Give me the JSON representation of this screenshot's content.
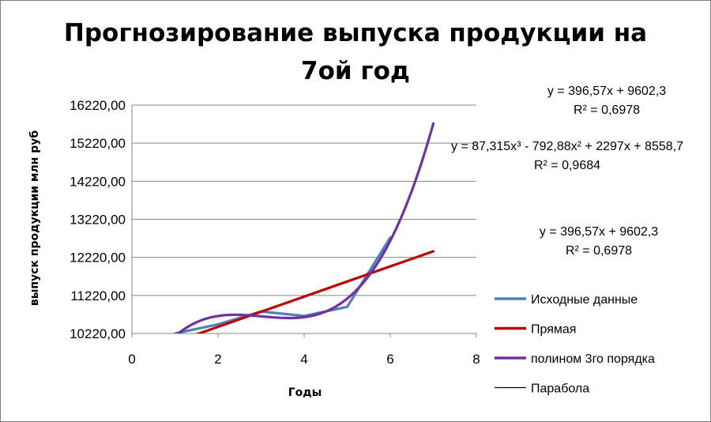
{
  "chart_data": {
    "type": "line",
    "title_line1": "Прогнозирование выпуска продукции на",
    "title_line2": "7ой год",
    "xlabel": "Годы",
    "ylabel": "выпуск продукции млн руб",
    "xlim": [
      0,
      8
    ],
    "ylim": [
      10220,
      16220
    ],
    "x_ticks": [
      "0",
      "2",
      "4",
      "6",
      "8"
    ],
    "y_ticks": [
      "10220,00",
      "11220,00",
      "12220,00",
      "13220,00",
      "14220,00",
      "15220,00",
      "16220,00"
    ],
    "grid": "horizontal",
    "legend_position": "right",
    "series": [
      {
        "name": "Исходные данные",
        "color": "#4f81bd",
        "x": [
          1,
          2,
          3,
          4,
          5,
          6
        ],
        "y": [
          10220,
          10460,
          10800,
          10680,
          10920,
          12740
        ]
      },
      {
        "name": "Прямая",
        "color": "#c00000",
        "kind": "linear-trend",
        "slope": 396.57,
        "intercept": 9602.3,
        "x_range": [
          1,
          7
        ]
      },
      {
        "name": "полином 3го порядка",
        "color": "#7030a0",
        "kind": "cubic-trend",
        "coeffs": [
          87.315,
          -792.88,
          2297,
          8558.7
        ],
        "x_range": [
          1,
          7
        ]
      },
      {
        "name": "Парабола",
        "color": "#000000"
      }
    ],
    "annotations": {
      "eq1": "y = 396,57x + 9602,3",
      "r2_1": "R² = 0,6978",
      "eq2": "y = 87,315x³ - 792,88x² + 2297x + 8558,7",
      "r2_2": "R² = 0,9684",
      "eq3": "y = 396,57x + 9602,3",
      "r2_3": "R² = 0,6978"
    }
  }
}
